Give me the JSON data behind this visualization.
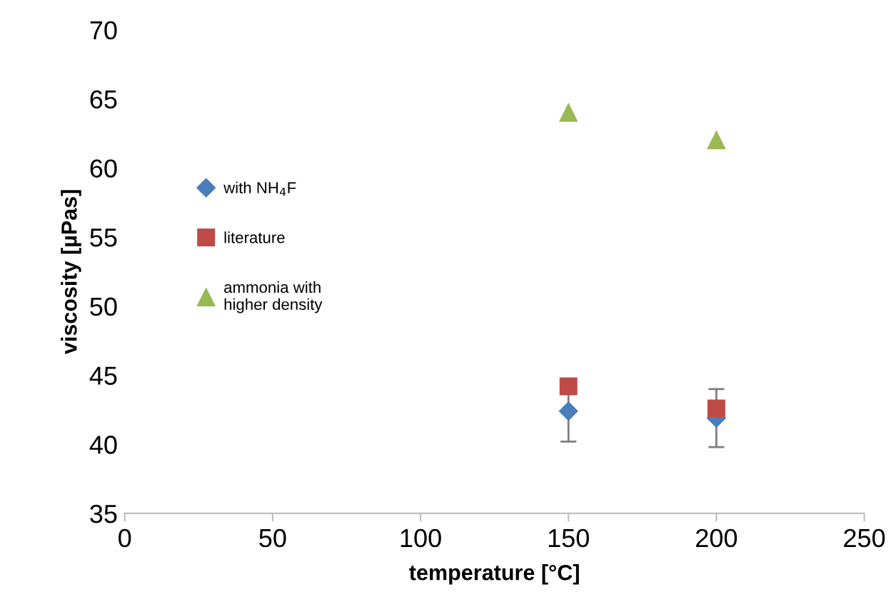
{
  "chart_data": {
    "type": "scatter",
    "xlabel": "temperature [°C]",
    "ylabel": "viscosity [µPas]",
    "x": [
      150,
      200
    ],
    "series": [
      {
        "name": "with NH$_{4}$F",
        "color": "#4a7ebb",
        "values": [
          42.4,
          41.9
        ],
        "errors": [
          2.2,
          2.1
        ],
        "marker": "diamond"
      },
      {
        "name": "literature",
        "color": "#be4b48",
        "values": [
          44.2,
          42.6
        ],
        "marker": "square"
      },
      {
        "name": "ammonia with\nhigher density",
        "color": "#98b954",
        "values": [
          64,
          62
        ],
        "marker": "triangle"
      }
    ],
    "xlim": [
      0,
      250
    ],
    "xticks": [
      0,
      50,
      100,
      150,
      200,
      250
    ],
    "ylim": [
      35,
      70
    ],
    "yticks": [
      35,
      40,
      45,
      50,
      55,
      60,
      65,
      70
    ],
    "grid": false,
    "legend": "left"
  }
}
